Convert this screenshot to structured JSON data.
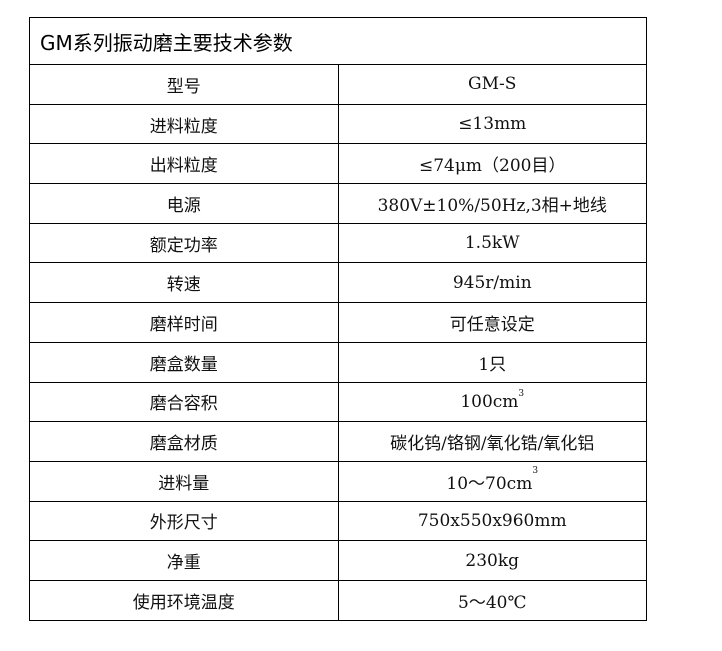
{
  "title": "GM系列振动磨主要技术参数",
  "rows": [
    {
      "label": "型号",
      "value": "GM-S"
    },
    {
      "label": "进料粒度",
      "value": "≤13mm"
    },
    {
      "label": "出料粒度",
      "value": "≤74μm（200目）"
    },
    {
      "label": "电源",
      "value": "380V±10%/50Hz,3相+地线"
    },
    {
      "label": "额定功率",
      "value": "1.5kW"
    },
    {
      "label": "转速",
      "value": "945r/min"
    },
    {
      "label": "磨样时间",
      "value": "可任意设定"
    },
    {
      "label": "磨盒数量",
      "value": "1只"
    },
    {
      "label": "磨合容积",
      "value": "100cm",
      "sup": "3"
    },
    {
      "label": "磨盒材质",
      "value": "碳化钨/铬钢/氧化锆/氧化铝"
    },
    {
      "label": "进料量",
      "value": "10～70cm",
      "sup": "3"
    },
    {
      "label": "外形尺寸",
      "value": "750x550x960mm"
    },
    {
      "label": "净重",
      "value": "230kg"
    },
    {
      "label": "使用环境温度",
      "value": "5～40℃"
    }
  ]
}
